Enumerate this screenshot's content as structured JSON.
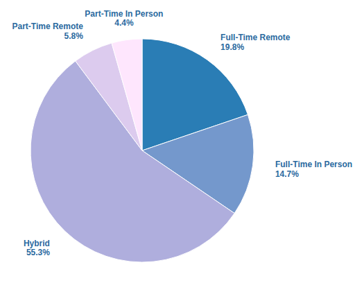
{
  "chart_data": {
    "type": "pie",
    "categories": [
      "Full-Time Remote",
      "Full-Time In Person",
      "Hybrid",
      "Part-Time Remote",
      "Part-Time In Person"
    ],
    "values": [
      19.8,
      14.7,
      55.3,
      5.8,
      4.4
    ],
    "value_labels": [
      "19.8%",
      "14.7%",
      "55.3%",
      "5.8%",
      "4.4%"
    ],
    "colors": [
      "#2a7db5",
      "#7498cc",
      "#afaedd",
      "#dccbee",
      "#fee6fd"
    ],
    "data_labels": true
  }
}
